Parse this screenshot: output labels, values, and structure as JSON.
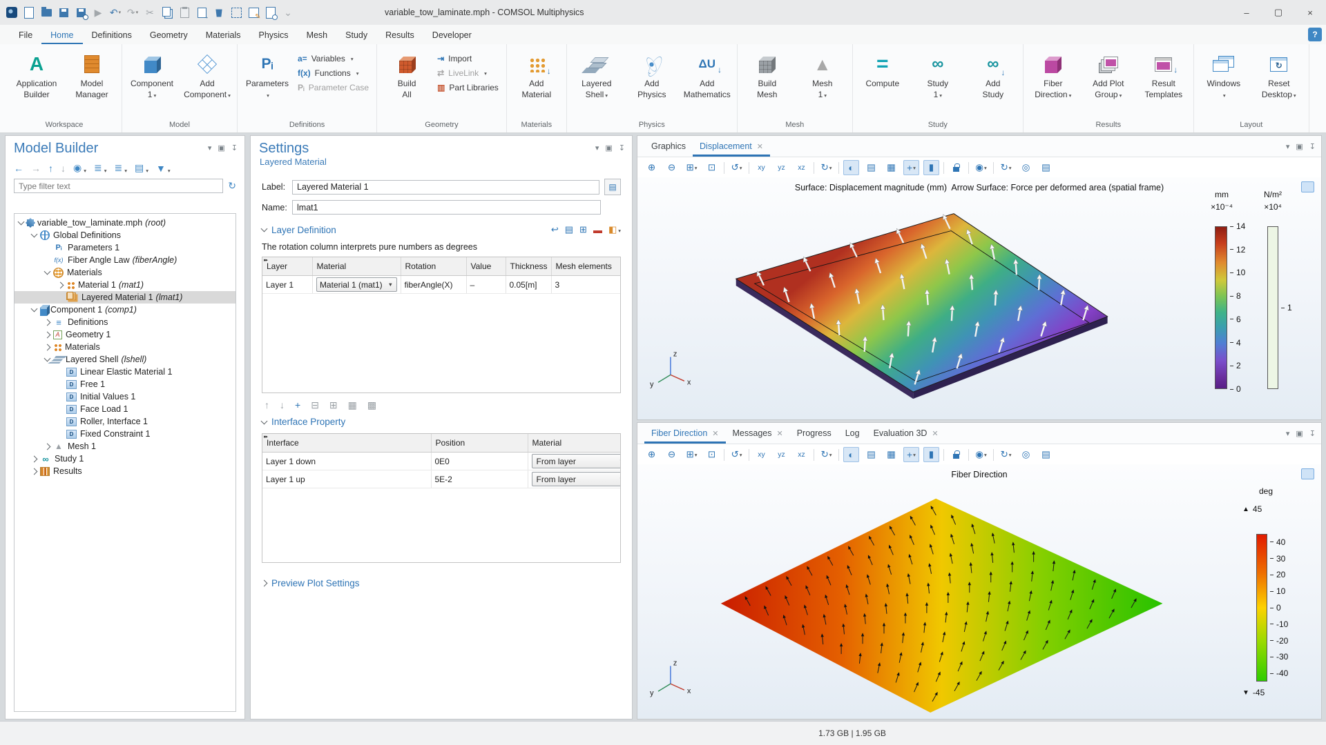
{
  "window": {
    "title": "variable_tow_laminate.mph - COMSOL Multiphysics",
    "controls": [
      {
        "name": "minimize",
        "glyph": "–"
      },
      {
        "name": "maximize",
        "glyph": "▢"
      },
      {
        "name": "close",
        "glyph": "×"
      }
    ]
  },
  "qat": [
    {
      "name": "comsol-logo",
      "type": "logo",
      "decor": true
    },
    {
      "name": "new-file",
      "type": "doc"
    },
    {
      "name": "open-file",
      "type": "folder"
    },
    {
      "name": "save",
      "type": "disk"
    },
    {
      "name": "save-as",
      "type": "disk2"
    },
    {
      "name": "run",
      "glyph": "▶",
      "disabled": true
    },
    {
      "name": "undo",
      "glyph": "↶",
      "caret": true
    },
    {
      "name": "redo",
      "glyph": "↷",
      "caret": true,
      "disabled": true
    },
    {
      "name": "cut",
      "glyph": "✂",
      "disabled": true
    },
    {
      "name": "copy",
      "type": "copy"
    },
    {
      "name": "paste",
      "type": "paste",
      "disabled": true
    },
    {
      "name": "duplicate",
      "type": "dup"
    },
    {
      "name": "delete",
      "type": "trash"
    },
    {
      "name": "select-box",
      "type": "selbox"
    },
    {
      "name": "node-edit",
      "type": "editpen"
    },
    {
      "name": "preview",
      "type": "docmag"
    },
    {
      "name": "customize-toolbar",
      "glyph": "⌄",
      "disabled": true
    }
  ],
  "menu": {
    "tabs": [
      "File",
      "Home",
      "Definitions",
      "Geometry",
      "Materials",
      "Physics",
      "Mesh",
      "Study",
      "Results",
      "Developer"
    ],
    "active": "Home",
    "help": "?"
  },
  "ribbon": {
    "groups": [
      {
        "label": "Workspace",
        "large": [
          {
            "name": "application-builder",
            "line1": "Application",
            "line2": "Builder",
            "icon": "app-builder"
          },
          {
            "name": "model-manager",
            "line1": "Model",
            "line2": "Manager",
            "icon": "model-manager"
          }
        ]
      },
      {
        "label": "Model",
        "large": [
          {
            "name": "component-1",
            "line1": "Component",
            "line2": "1",
            "caret": true,
            "icon": "cube-blue"
          },
          {
            "name": "add-component",
            "line1": "Add",
            "line2": "Component",
            "caret": true,
            "icon": "cube-outline"
          }
        ]
      },
      {
        "label": "Definitions",
        "large": [
          {
            "name": "parameters",
            "line1": "Parameters",
            "line2": "",
            "caret": true,
            "icon": "pi"
          }
        ],
        "small": [
          {
            "name": "variables",
            "label": "Variables",
            "caret": true,
            "icon": "a-eq"
          },
          {
            "name": "functions",
            "label": "Functions",
            "caret": true,
            "icon": "fx"
          },
          {
            "name": "parameter-case",
            "label": "Parameter Case",
            "icon": "pi-gray",
            "disabled": true
          }
        ]
      },
      {
        "label": "Geometry",
        "large": [
          {
            "name": "build-all",
            "line1": "Build",
            "line2": "All",
            "icon": "bricks-orange"
          }
        ],
        "small": [
          {
            "name": "import",
            "label": "Import",
            "icon": "import"
          },
          {
            "name": "livelink",
            "label": "LiveLink",
            "caret": true,
            "icon": "livelink",
            "disabled": true
          },
          {
            "name": "part-libraries",
            "label": "Part Libraries",
            "icon": "part-lib"
          }
        ]
      },
      {
        "label": "Materials",
        "large": [
          {
            "name": "add-material",
            "line1": "Add",
            "line2": "Material",
            "icon": "dots-orange",
            "add": true
          }
        ]
      },
      {
        "label": "Physics",
        "large": [
          {
            "name": "layered-shell",
            "line1": "Layered",
            "line2": "Shell",
            "caret": true,
            "icon": "layers"
          },
          {
            "name": "add-physics",
            "line1": "Add",
            "line2": "Physics",
            "icon": "atom",
            "add": true
          },
          {
            "name": "add-mathematics",
            "line1": "Add",
            "line2": "Mathematics",
            "icon": "delta-u",
            "add": true
          }
        ]
      },
      {
        "label": "Mesh",
        "large": [
          {
            "name": "build-mesh",
            "line1": "Build",
            "line2": "Mesh",
            "icon": "bricks-gray"
          },
          {
            "name": "mesh-1",
            "line1": "Mesh",
            "line2": "1",
            "caret": true,
            "icon": "tri-gray"
          }
        ]
      },
      {
        "label": "Study",
        "large": [
          {
            "name": "compute",
            "line1": "Compute",
            "line2": "",
            "icon": "equals"
          },
          {
            "name": "study-1",
            "line1": "Study",
            "line2": "1",
            "caret": true,
            "icon": "glasses"
          },
          {
            "name": "add-study",
            "line1": "Add",
            "line2": "Study",
            "icon": "glasses",
            "add": true
          }
        ]
      },
      {
        "label": "Results",
        "large": [
          {
            "name": "fiber-direction",
            "line1": "Fiber",
            "line2": "Direction",
            "caret": true,
            "icon": "cube-magenta"
          },
          {
            "name": "add-plot-group",
            "line1": "Add Plot",
            "line2": "Group",
            "caret": true,
            "icon": "plot-stack"
          },
          {
            "name": "result-templates",
            "line1": "Result",
            "line2": "Templates",
            "icon": "result-win",
            "add": true
          }
        ]
      },
      {
        "label": "Layout",
        "large": [
          {
            "name": "windows",
            "line1": "Windows",
            "line2": "",
            "caret": true,
            "icon": "windows"
          },
          {
            "name": "reset-desktop",
            "line1": "Reset",
            "line2": "Desktop",
            "caret": true,
            "icon": "reset-win"
          }
        ]
      }
    ]
  },
  "model_builder": {
    "title": "Model Builder",
    "header_icons": [
      {
        "name": "collapse",
        "glyph": "▾"
      },
      {
        "name": "float",
        "glyph": "▣"
      },
      {
        "name": "pin",
        "glyph": "↧"
      }
    ],
    "toolbar": [
      {
        "name": "back",
        "glyph": "←"
      },
      {
        "name": "forward",
        "glyph": "→",
        "disabled": true
      },
      {
        "name": "move-up",
        "glyph": "↑"
      },
      {
        "name": "move-down",
        "glyph": "↓",
        "disabled": true
      },
      {
        "name": "show",
        "glyph": "◉",
        "caret": true
      },
      {
        "name": "expand-all",
        "glyph": "≣",
        "caret": true
      },
      {
        "name": "collapse-all",
        "glyph": "≣",
        "caret": true
      },
      {
        "name": "model-tree-nodes",
        "glyph": "▤",
        "caret": true
      },
      {
        "name": "filter",
        "glyph": "▼",
        "caret": true
      }
    ],
    "filter_placeholder": "Type filter text",
    "refresh_glyph": "↻",
    "tree": [
      {
        "depth": 0,
        "expand": "open",
        "icon": "root",
        "label": "variable_tow_laminate.mph",
        "suffix": "(root)"
      },
      {
        "depth": 1,
        "expand": "open",
        "icon": "globe",
        "label": "Global Definitions"
      },
      {
        "depth": 2,
        "expand": "none",
        "icon": "pi",
        "label": "Parameters 1"
      },
      {
        "depth": 2,
        "expand": "none",
        "icon": "fx",
        "label": "Fiber Angle Law",
        "suffix": "(fiberAngle)"
      },
      {
        "depth": 2,
        "expand": "open",
        "icon": "matfold",
        "label": "Materials"
      },
      {
        "depth": 3,
        "expand": "closed",
        "icon": "matgrid",
        "label": "Material 1",
        "suffix": "(mat1)"
      },
      {
        "depth": 3,
        "expand": "none",
        "icon": "lmat",
        "label": "Layered Material 1",
        "suffix": "(lmat1)",
        "selected": true
      },
      {
        "depth": 1,
        "expand": "open",
        "icon": "cube",
        "label": "Component 1",
        "suffix": "(comp1)"
      },
      {
        "depth": 2,
        "expand": "closed",
        "icon": "defs",
        "label": "Definitions"
      },
      {
        "depth": 2,
        "expand": "closed",
        "icon": "geom",
        "label": "Geometry 1"
      },
      {
        "depth": 2,
        "expand": "closed",
        "icon": "matgrid",
        "label": "Materials"
      },
      {
        "depth": 2,
        "expand": "open",
        "icon": "lshell",
        "label": "Layered Shell",
        "suffix": "(lshell)"
      },
      {
        "depth": 3,
        "expand": "none",
        "icon": "dnode",
        "label": "Linear Elastic Material 1"
      },
      {
        "depth": 3,
        "expand": "none",
        "icon": "dnode",
        "label": "Free 1"
      },
      {
        "depth": 3,
        "expand": "none",
        "icon": "dnode",
        "label": "Initial Values 1"
      },
      {
        "depth": 3,
        "expand": "none",
        "icon": "dnode",
        "label": "Face Load 1"
      },
      {
        "depth": 3,
        "expand": "none",
        "icon": "dnode",
        "label": "Roller, Interface 1"
      },
      {
        "depth": 3,
        "expand": "none",
        "icon": "dnode",
        "label": "Fixed Constraint 1"
      },
      {
        "depth": 2,
        "expand": "closed",
        "icon": "mesh",
        "label": "Mesh 1"
      },
      {
        "depth": 1,
        "expand": "closed",
        "icon": "study",
        "label": "Study 1"
      },
      {
        "depth": 1,
        "expand": "closed",
        "icon": "results",
        "label": "Results"
      }
    ]
  },
  "settings": {
    "title": "Settings",
    "subtitle": "Layered Material",
    "header_icons": [
      {
        "name": "collapse",
        "glyph": "▾"
      },
      {
        "name": "float",
        "glyph": "▣"
      },
      {
        "name": "pin",
        "glyph": "↧"
      }
    ],
    "label": {
      "caption": "Label:",
      "value": "Layered Material 1"
    },
    "rename_glyph": "▤",
    "name": {
      "caption": "Name:",
      "value": "lmat1"
    },
    "table_marker": "▸▸",
    "layer_definition": {
      "title": "Layer Definition",
      "icons": [
        {
          "name": "copy-layers",
          "glyph": "↩"
        },
        {
          "name": "save-layers",
          "glyph": "▤"
        },
        {
          "name": "load-layers",
          "glyph": "⊞"
        },
        {
          "name": "delete-layers",
          "glyph": "▬",
          "color": "red"
        },
        {
          "name": "preview-colors",
          "glyph": "◧",
          "caret": true,
          "color": "org"
        }
      ],
      "note": "The rotation column interprets pure numbers as degrees",
      "columns": [
        "Layer",
        "Material",
        "Rotation",
        "Value",
        "Thickness",
        "Mesh elements"
      ],
      "rows": [
        [
          "Layer 1",
          "Material 1 (mat1)",
          "fiberAngle(X)",
          "–",
          "0.05[m]",
          "3"
        ]
      ],
      "toolbar": [
        {
          "name": "move-up",
          "glyph": "↑"
        },
        {
          "name": "move-down",
          "glyph": "↓"
        },
        {
          "name": "add",
          "glyph": "+",
          "enabled": true
        },
        {
          "name": "delete",
          "glyph": "⊟"
        },
        {
          "name": "load-from-file",
          "glyph": "⊞"
        },
        {
          "name": "save-to-file",
          "glyph": "▦"
        },
        {
          "name": "clear-table",
          "glyph": "▩"
        }
      ]
    },
    "interface_property": {
      "title": "Interface Property",
      "columns": [
        "Interface",
        "Position",
        "Material"
      ],
      "rows": [
        [
          "Layer 1 down",
          "0E0",
          "From layer"
        ],
        [
          "Layer 1 up",
          "5E-2",
          "From layer"
        ]
      ]
    },
    "preview_plot": {
      "title": "Preview Plot Settings"
    }
  },
  "graphics_toolbar": [
    {
      "name": "zoom-in",
      "glyph": "⊕"
    },
    {
      "name": "zoom-out",
      "glyph": "⊖"
    },
    {
      "name": "zoom-box",
      "glyph": "⊞",
      "caret": true
    },
    {
      "name": "zoom-extents",
      "glyph": "⊡"
    },
    {
      "sep": true
    },
    {
      "name": "go-to-default-view",
      "glyph": "↺",
      "caret": true
    },
    {
      "sep": true
    },
    {
      "name": "view-xy",
      "glyph": "xy",
      "text": true
    },
    {
      "name": "view-yz",
      "glyph": "yz",
      "text": true
    },
    {
      "name": "view-xz",
      "glyph": "xz",
      "text": true
    },
    {
      "sep": true
    },
    {
      "name": "rotate-view",
      "glyph": "↻",
      "caret": true
    },
    {
      "sep": true
    },
    {
      "name": "scene-light",
      "glyph": "◐",
      "active": true
    },
    {
      "name": "environment",
      "glyph": "▤"
    },
    {
      "name": "grid",
      "glyph": "▦"
    },
    {
      "name": "view-settings",
      "glyph": "+",
      "caret": true,
      "active": true
    },
    {
      "name": "color-legend",
      "glyph": "▮",
      "active": true
    },
    {
      "sep": true
    },
    {
      "name": "lock",
      "lock": true
    },
    {
      "sep": true
    },
    {
      "name": "appearance",
      "glyph": "◉",
      "caret": true
    },
    {
      "sep": true
    },
    {
      "name": "update-plot",
      "glyph": "↻",
      "caret": true
    },
    {
      "name": "image-snapshot",
      "glyph": "◎"
    },
    {
      "name": "print",
      "glyph": "▤"
    }
  ],
  "graphics_top": {
    "tabs": [
      {
        "label": "Graphics"
      },
      {
        "label": "Displacement",
        "active": true,
        "closable": true
      }
    ],
    "window_icons": [
      {
        "name": "collapse",
        "glyph": "▾"
      },
      {
        "name": "float",
        "glyph": "▣"
      },
      {
        "name": "pin",
        "glyph": "↧"
      }
    ],
    "title": "Surface: Displacement magnitude (mm)  Arrow Surface: Force per deformed area (spatial frame)",
    "colorbar_primary": {
      "unit": "mm",
      "scale": "×10⁻⁴",
      "ticks": [
        "14",
        "12",
        "10",
        "8",
        "6",
        "4",
        "2",
        "0"
      ]
    },
    "colorbar_secondary": {
      "unit": "N/m²",
      "scale": "×10⁴",
      "ticks": [
        "1"
      ]
    },
    "triad": {
      "x": "x",
      "y": "y",
      "z": "z"
    }
  },
  "graphics_bottom": {
    "tabs": [
      {
        "label": "Fiber Direction",
        "active": true,
        "closable": true
      },
      {
        "label": "Messages",
        "closable": true
      },
      {
        "label": "Progress"
      },
      {
        "label": "Log"
      },
      {
        "label": "Evaluation 3D",
        "closable": true
      }
    ],
    "window_icons": [
      {
        "name": "collapse",
        "glyph": "▾"
      },
      {
        "name": "float",
        "glyph": "▣"
      },
      {
        "name": "pin",
        "glyph": "↧"
      }
    ],
    "title": "Fiber Direction",
    "colorbar": {
      "unit": "deg",
      "max": "45",
      "min": "-45",
      "ticks": [
        "40",
        "30",
        "20",
        "10",
        "0",
        "-10",
        "-20",
        "-30",
        "-40"
      ]
    },
    "triad": {
      "x": "x",
      "y": "y",
      "z": "z"
    }
  },
  "status_bar": {
    "memory": "1.73 GB | 1.95 GB"
  }
}
